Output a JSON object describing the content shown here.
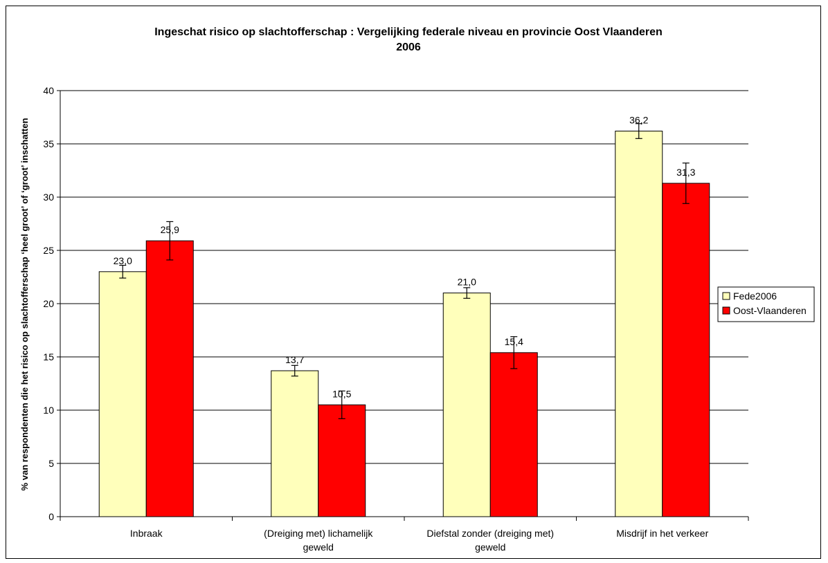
{
  "chart_data": {
    "type": "bar",
    "title": "Ingeschat risico op slachtofferschap : Vergelijking federale niveau en provincie Oost Vlaanderen",
    "subtitle": "2006",
    "ylabel": "% van respondenten die het risico op slachtofferschap ‘heel groot’ of ‘groot’ inschatten",
    "xlabel": "",
    "ylim": [
      0,
      40
    ],
    "yticks": [
      "0",
      "5",
      "10",
      "15",
      "20",
      "25",
      "30",
      "35",
      "40"
    ],
    "categories": [
      [
        "Inbraak"
      ],
      [
        "(Dreiging met) lichamelijk",
        "geweld"
      ],
      [
        "Diefstal zonder (dreiging met)",
        "geweld"
      ],
      [
        "Misdrijf in het verkeer"
      ]
    ],
    "series": [
      {
        "name": "Fede2006",
        "color": "#FFFFBB",
        "values": [
          23.0,
          13.7,
          21.0,
          36.2
        ],
        "labels": [
          "23,0",
          "13,7",
          "21,0",
          "36,2"
        ],
        "error": [
          0.6,
          0.5,
          0.5,
          0.7
        ]
      },
      {
        "name": "Oost-Vlaanderen",
        "color": "#FF0000",
        "values": [
          25.9,
          10.5,
          15.4,
          31.3
        ],
        "labels": [
          "25,9",
          "10,5",
          "15,4",
          "31,3"
        ],
        "error": [
          1.8,
          1.3,
          1.5,
          1.9
        ]
      }
    ],
    "grid": true,
    "legend_position": "right"
  }
}
